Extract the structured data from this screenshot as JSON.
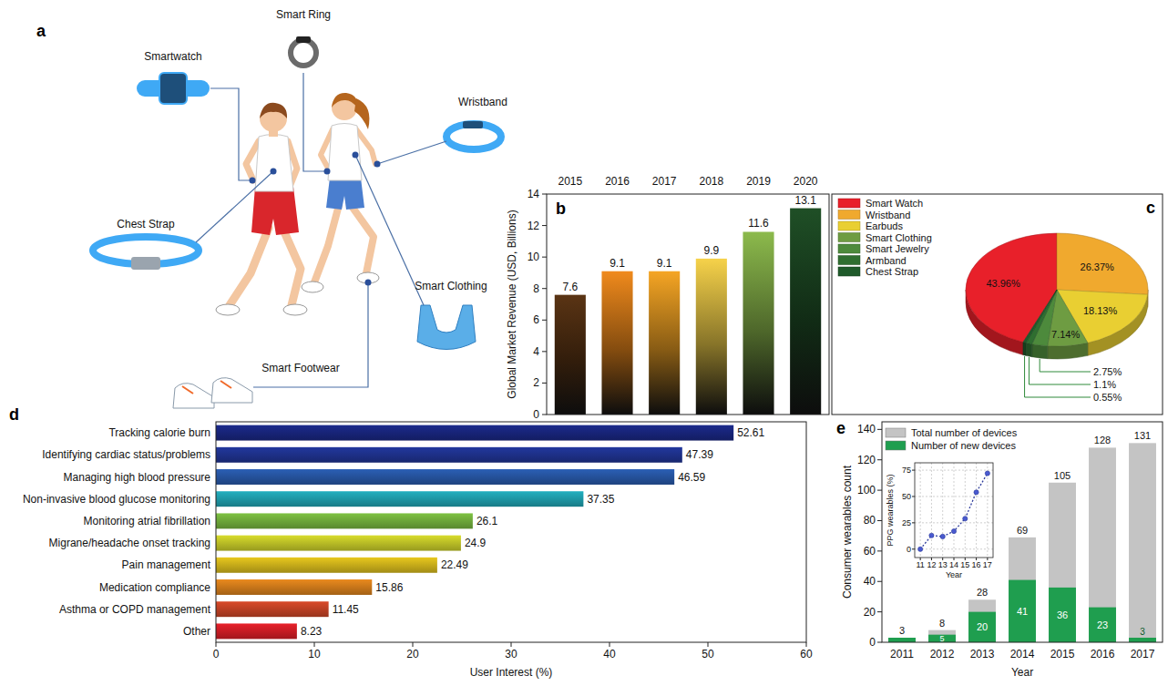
{
  "diagram": {
    "panel": "a",
    "devices": [
      "Smart Ring",
      "Smartwatch",
      "Wristband",
      "Chest Strap",
      "Smart Clothing",
      "Smart Footwear"
    ]
  },
  "chart_data": [
    {
      "panel": "b",
      "type": "bar",
      "categories": [
        "2015",
        "2016",
        "2017",
        "2018",
        "2019",
        "2020"
      ],
      "values": [
        7.6,
        9.1,
        9.1,
        9.9,
        11.6,
        13.1
      ],
      "colors": [
        "#5a3414",
        "#f08a1c",
        "#f5a524",
        "#f6d24a",
        "#8cba4c",
        "#1f4f26"
      ],
      "ylabel": "Global Market Revenue (USD, Billions)",
      "ylim": [
        0,
        14
      ],
      "yticks": [
        0,
        2,
        4,
        6,
        8,
        10,
        12,
        14
      ],
      "grid": false,
      "data_labels": true
    },
    {
      "panel": "c",
      "type": "pie",
      "categories": [
        "Smart Watch",
        "Wristband",
        "Earbuds",
        "Smart Clothing",
        "Smart Jewelry",
        "Armband",
        "Chest Strap"
      ],
      "values": [
        43.96,
        26.37,
        18.13,
        7.14,
        2.75,
        1.1,
        0.55
      ],
      "value_labels": [
        "43.96%",
        "26.37%",
        "18.13%",
        "7.14%",
        "2.75%",
        "1.1%",
        "0.55%"
      ],
      "colors": [
        "#e8202a",
        "#f0a92e",
        "#e9cf32",
        "#6e9c42",
        "#4d8a3c",
        "#2f6e30",
        "#1f5a2a"
      ],
      "legend": "top-left",
      "data_labels": true
    },
    {
      "panel": "d",
      "type": "bar",
      "orientation": "horizontal",
      "categories": [
        "Tracking calorie burn",
        "Identifying cardiac status/problems",
        "Managing high blood pressure",
        "Non-invasive blood glucose monitoring",
        "Monitoring atrial fibrillation",
        "Migrane/headache onset tracking",
        "Pain management",
        "Medication compliance",
        "Asthma or COPD management",
        "Other"
      ],
      "values": [
        52.61,
        47.39,
        46.59,
        37.35,
        26.1,
        24.9,
        22.49,
        15.86,
        11.45,
        8.23
      ],
      "colors": [
        "#1b2a8c",
        "#22389e",
        "#2b5fb5",
        "#22b0c0",
        "#7ec242",
        "#d8dc2c",
        "#e8c81e",
        "#ea8a1e",
        "#d94a2a",
        "#e8202a"
      ],
      "xlabel": "User Interest (%)",
      "xlim": [
        0,
        60
      ],
      "xticks": [
        0,
        10,
        20,
        30,
        40,
        50,
        60
      ],
      "grid": false,
      "data_labels": true
    },
    {
      "panel": "e",
      "type": "bar",
      "categories": [
        "2011",
        "2012",
        "2013",
        "2014",
        "2015",
        "2016",
        "2017"
      ],
      "series": [
        {
          "name": "Total number of devices",
          "color": "#c4c4c4",
          "values": [
            3,
            8,
            28,
            69,
            105,
            128,
            131
          ]
        },
        {
          "name": "Number of new devices",
          "color": "#1f9e4f",
          "values": [
            3,
            5,
            20,
            41,
            36,
            23,
            3
          ],
          "value_labels": [
            null,
            "5",
            "20",
            "41",
            "36",
            "23",
            "3"
          ]
        }
      ],
      "stacked": false,
      "xlabel": "Year",
      "ylabel": "Consumer wearables count",
      "ylim": [
        0,
        145
      ],
      "yticks": [
        0,
        20,
        40,
        60,
        80,
        100,
        120,
        140
      ],
      "legend": "top-left",
      "grid": false,
      "data_labels": true
    },
    {
      "type": "line",
      "x": [
        11,
        12,
        13,
        14,
        15,
        16,
        17
      ],
      "values": [
        0,
        13,
        12,
        17,
        29,
        54,
        72
      ],
      "xlabel": "Year",
      "ylabel": "PPG wearables (%)",
      "xlim": [
        10.5,
        17.5
      ],
      "ylim": [
        -8,
        82
      ],
      "xticks": [
        11,
        12,
        13,
        14,
        15,
        16,
        17
      ],
      "yticks": [
        0,
        25,
        50,
        75
      ],
      "grid": true,
      "color": "#2b3a9a",
      "marker": "circle",
      "line_style": "dotted"
    }
  ]
}
